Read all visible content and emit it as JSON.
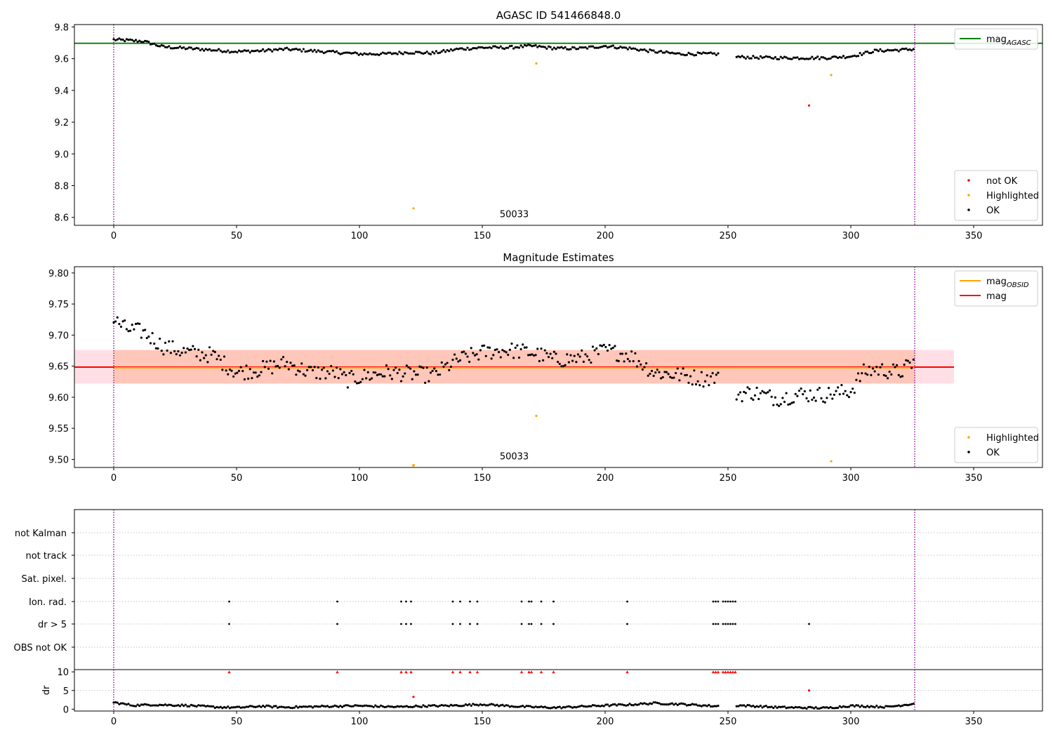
{
  "colors": {
    "ok": "#000000",
    "not_ok": "#ff0000",
    "highlighted": "#ffa500",
    "agasc_line": "#008000",
    "mag_line": "#ff0000",
    "obsid_line": "#ffa500",
    "obs_marker": "#800080"
  },
  "chart_data": [
    {
      "type": "scatter",
      "title": "AGASC ID 541466848.0",
      "xlim": [
        -16,
        378
      ],
      "ylim": [
        8.55,
        9.815
      ],
      "xticks": [
        0,
        50,
        100,
        150,
        200,
        250,
        300,
        350
      ],
      "yticks": [
        8.6,
        8.8,
        9.0,
        9.2,
        9.4,
        9.6,
        9.8
      ],
      "ytick_labels": [
        "8.6",
        "8.8",
        "9.0",
        "9.2",
        "9.4",
        "9.6",
        "9.8"
      ],
      "hline": {
        "name": "mag_AGASC",
        "y": 9.697,
        "x_range": [
          -16,
          378
        ]
      },
      "vlines": [
        0,
        326
      ],
      "obsid_label": {
        "text": "50033",
        "x": 163,
        "y": 8.6
      },
      "series": [
        {
          "name": "not OK",
          "color": "not_ok",
          "points": [
            [
              283,
              9.305
            ]
          ]
        },
        {
          "name": "Highlighted",
          "color": "highlighted",
          "points": [
            [
              122,
              8.657
            ],
            [
              172,
              9.57
            ],
            [
              292,
              9.497
            ]
          ]
        },
        {
          "name": "OK",
          "color": "ok",
          "control": [
            [
              0,
              9.72
            ],
            [
              12,
              9.71
            ],
            [
              20,
              9.675
            ],
            [
              50,
              9.645
            ],
            [
              60,
              9.65
            ],
            [
              70,
              9.66
            ],
            [
              90,
              9.64
            ],
            [
              100,
              9.63
            ],
            [
              110,
              9.63
            ],
            [
              120,
              9.64
            ],
            [
              130,
              9.635
            ],
            [
              140,
              9.66
            ],
            [
              150,
              9.67
            ],
            [
              160,
              9.67
            ],
            [
              170,
              9.68
            ],
            [
              180,
              9.665
            ],
            [
              190,
              9.665
            ],
            [
              200,
              9.68
            ],
            [
              210,
              9.665
            ],
            [
              220,
              9.645
            ],
            [
              230,
              9.63
            ],
            [
              240,
              9.63
            ],
            [
              245,
              9.63
            ],
            [
              255,
              9.61
            ],
            [
              270,
              9.605
            ],
            [
              290,
              9.605
            ],
            [
              300,
              9.615
            ],
            [
              310,
              9.65
            ],
            [
              320,
              9.655
            ],
            [
              326,
              9.66
            ]
          ],
          "gaps": [
            [
              246,
              253
            ]
          ],
          "x_step": 0.75,
          "jitter": 0.009
        }
      ],
      "legends": [
        {
          "position": "top-right",
          "entries": [
            {
              "label": "mag",
              "sub": "AGASC",
              "kind": "line",
              "color": "agasc_line"
            }
          ]
        },
        {
          "position": "bottom-right",
          "entries": [
            {
              "label": "not OK",
              "kind": "dot",
              "color": "not_ok"
            },
            {
              "label": "Highlighted",
              "kind": "dot",
              "color": "highlighted"
            },
            {
              "label": "OK",
              "kind": "dot",
              "color": "ok"
            }
          ]
        }
      ]
    },
    {
      "type": "scatter",
      "title": "Magnitude Estimates",
      "xlim": [
        -16,
        378
      ],
      "ylim": [
        9.487,
        9.81
      ],
      "xticks": [
        0,
        50,
        100,
        150,
        200,
        250,
        300,
        350
      ],
      "yticks": [
        9.5,
        9.55,
        9.6,
        9.65,
        9.7,
        9.75,
        9.8
      ],
      "ytick_labels": [
        "9.50",
        "9.55",
        "9.60",
        "9.65",
        "9.70",
        "9.75",
        "9.80"
      ],
      "bands": [
        {
          "color": "#ffc0cb",
          "opacity": 0.5,
          "y": [
            9.622,
            9.676
          ],
          "x_range": [
            -16,
            342
          ]
        },
        {
          "color": "#ffa07a",
          "opacity": 0.4,
          "y": [
            9.622,
            9.676
          ],
          "x_range": [
            0,
            326
          ]
        }
      ],
      "hlines": [
        {
          "name": "mag",
          "y": 9.6485,
          "color": "mag_line",
          "x_range": [
            -16,
            342
          ]
        },
        {
          "name": "mag_OBSID",
          "y": 9.6475,
          "color": "obsid_line",
          "x_range": [
            0,
            326
          ]
        }
      ],
      "vlines": [
        0,
        326
      ],
      "obsid_label": {
        "text": "50033",
        "x": 163,
        "y": 9.5
      },
      "series": [
        {
          "name": "Highlighted",
          "color": "highlighted",
          "points": [
            [
              122,
              9.49
            ],
            [
              172,
              9.57
            ],
            [
              292,
              9.497
            ]
          ]
        },
        {
          "name": "OK",
          "color": "ok",
          "control": [
            [
              0,
              9.725
            ],
            [
              5,
              9.71
            ],
            [
              12,
              9.705
            ],
            [
              20,
              9.682
            ],
            [
              30,
              9.672
            ],
            [
              40,
              9.668
            ],
            [
              50,
              9.64
            ],
            [
              60,
              9.645
            ],
            [
              70,
              9.655
            ],
            [
              80,
              9.64
            ],
            [
              90,
              9.64
            ],
            [
              95,
              9.628
            ],
            [
              100,
              9.632
            ],
            [
              110,
              9.64
            ],
            [
              120,
              9.638
            ],
            [
              130,
              9.635
            ],
            [
              140,
              9.66
            ],
            [
              150,
              9.672
            ],
            [
              160,
              9.676
            ],
            [
              170,
              9.672
            ],
            [
              180,
              9.66
            ],
            [
              190,
              9.663
            ],
            [
              200,
              9.675
            ],
            [
              210,
              9.668
            ],
            [
              220,
              9.64
            ],
            [
              230,
              9.636
            ],
            [
              240,
              9.63
            ],
            [
              245,
              9.632
            ],
            [
              254,
              9.605
            ],
            [
              260,
              9.608
            ],
            [
              270,
              9.598
            ],
            [
              280,
              9.605
            ],
            [
              290,
              9.604
            ],
            [
              300,
              9.61
            ],
            [
              305,
              9.64
            ],
            [
              310,
              9.645
            ],
            [
              320,
              9.64
            ],
            [
              326,
              9.658
            ]
          ],
          "gaps": [
            [
              246,
              253
            ]
          ],
          "x_step": 0.75,
          "jitter": 0.013
        }
      ],
      "legends": [
        {
          "position": "top-right",
          "entries": [
            {
              "label": "mag",
              "sub": "OBSID",
              "kind": "line",
              "color": "obsid_line"
            },
            {
              "label": "mag",
              "kind": "line",
              "color": "mag_line"
            }
          ]
        },
        {
          "position": "bottom-right",
          "entries": [
            {
              "label": "Highlighted",
              "kind": "dot",
              "color": "highlighted"
            },
            {
              "label": "OK",
              "kind": "dot",
              "color": "ok"
            }
          ]
        }
      ]
    },
    {
      "type": "scatter",
      "title": "",
      "xlim": [
        -16,
        378
      ],
      "categories": [
        "not Kalman",
        "not track",
        "Sat. pixel.",
        "Ion. rad.",
        "dr > 5",
        "OBS not OK"
      ],
      "flag_x": [
        47,
        91,
        117,
        119,
        121,
        138,
        141,
        145,
        148,
        166,
        169,
        170,
        174,
        179,
        209,
        244,
        245,
        246,
        248,
        249,
        250,
        251,
        252,
        253
      ],
      "flags": [
        {
          "category": "Ion. rad.",
          "x": "flag_x"
        },
        {
          "category": "dr > 5",
          "x": "flag_x",
          "extra": [
            283
          ]
        }
      ],
      "vlines": [
        0,
        326
      ]
    },
    {
      "type": "scatter",
      "title": "",
      "xlim": [
        -16,
        378
      ],
      "ylim": [
        -0.5,
        10.6
      ],
      "ylabel": "dr",
      "xticks": [
        0,
        50,
        100,
        150,
        200,
        250,
        300,
        350
      ],
      "yticks": [
        0,
        5,
        10
      ],
      "ytick_labels": [
        "0",
        "5",
        "10"
      ],
      "vlines": [
        0,
        326
      ],
      "clipped_markers": {
        "y": 10,
        "x": "flag_x"
      },
      "series": [
        {
          "name": "not OK",
          "color": "not_ok",
          "points": [
            [
              283,
              5.0
            ],
            [
              122,
              3.3
            ]
          ]
        },
        {
          "name": "OK",
          "color": "ok",
          "control": [
            [
              0,
              1.8
            ],
            [
              8,
              1.0
            ],
            [
              15,
              1.2
            ],
            [
              30,
              1.0
            ],
            [
              40,
              0.6
            ],
            [
              50,
              0.4
            ],
            [
              60,
              0.8
            ],
            [
              70,
              0.5
            ],
            [
              90,
              0.8
            ],
            [
              100,
              0.9
            ],
            [
              115,
              0.6
            ],
            [
              125,
              0.8
            ],
            [
              140,
              1.0
            ],
            [
              150,
              1.3
            ],
            [
              165,
              0.7
            ],
            [
              180,
              0.4
            ],
            [
              200,
              1.0
            ],
            [
              210,
              1.2
            ],
            [
              220,
              1.6
            ],
            [
              232,
              1.3
            ],
            [
              245,
              0.8
            ],
            [
              255,
              1.0
            ],
            [
              270,
              0.5
            ],
            [
              290,
              0.3
            ],
            [
              300,
              0.9
            ],
            [
              315,
              0.6
            ],
            [
              326,
              1.5
            ]
          ],
          "gaps": [
            [
              246,
              253
            ]
          ],
          "x_step": 0.75,
          "jitter": 0.25
        }
      ]
    }
  ]
}
